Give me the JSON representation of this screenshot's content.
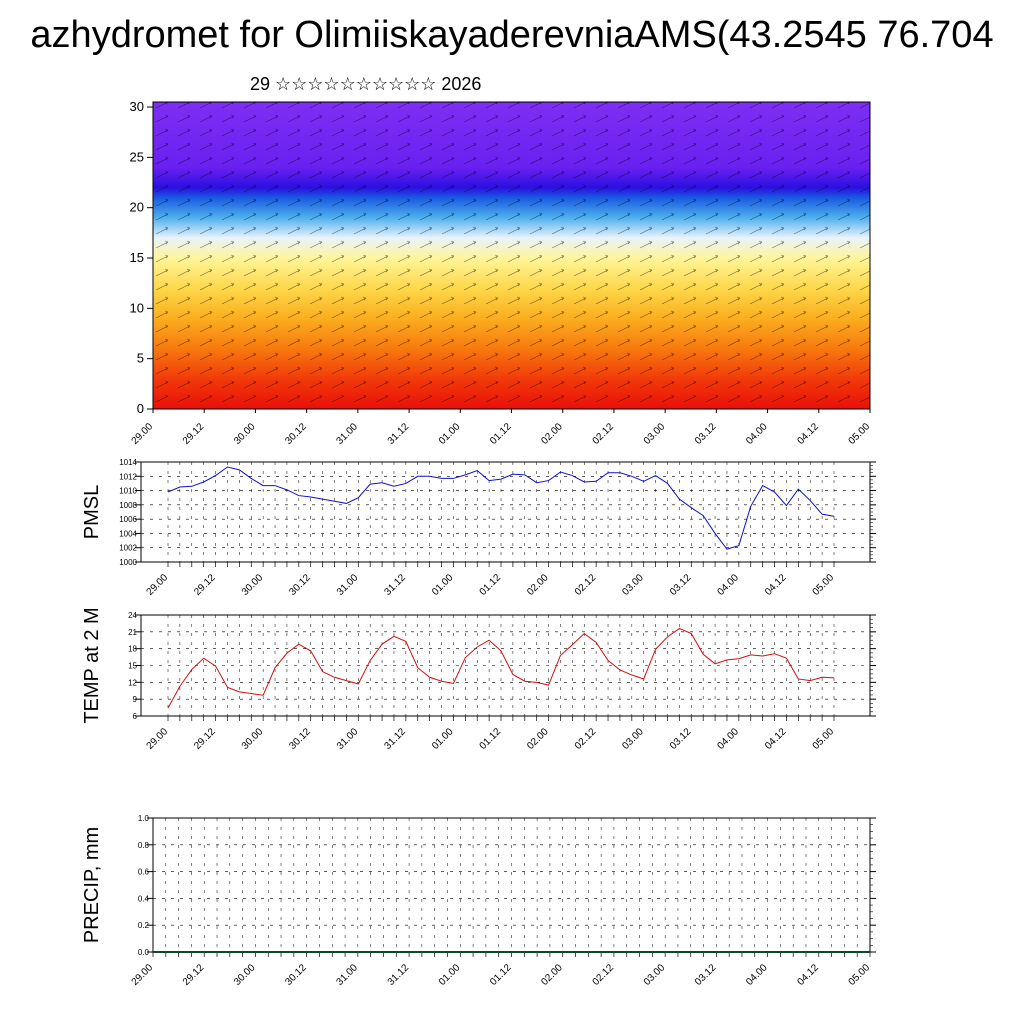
{
  "header": {
    "title": "azhydromet for OlimiiskayaderevniaAMS(43.2545 76.704",
    "subtitle": "29 ☆☆☆☆☆☆☆☆☆☆ 2026"
  },
  "time_labels": [
    "29.00",
    "29.12",
    "30.00",
    "30.12",
    "31.00",
    "31.12",
    "01.00",
    "01.12",
    "02.00",
    "02.12",
    "03.00",
    "03.12",
    "04.00",
    "04.12",
    "05.00"
  ],
  "precip_time_labels": [
    "29.00",
    "29.12",
    "30.00",
    "30.12",
    "31.00",
    "31.12",
    "01.00",
    "01.12",
    "02.00",
    "02.12",
    "03.00",
    "03.12",
    "04.00",
    "04.12",
    "05.00"
  ],
  "chart_data": [
    {
      "type": "heatmap",
      "name_hint": "wind-profile",
      "y_ticks": [
        0,
        5,
        10,
        15,
        20,
        25,
        30
      ],
      "ylim": [
        0,
        30.5
      ],
      "bands": [
        {
          "level": 0,
          "color": "#e8100a"
        },
        {
          "level": 3,
          "color": "#f23a0a"
        },
        {
          "level": 6,
          "color": "#f77a0e"
        },
        {
          "level": 9,
          "color": "#fbae1f"
        },
        {
          "level": 12,
          "color": "#fdd84a"
        },
        {
          "level": 15,
          "color": "#fff59a"
        },
        {
          "level": 17,
          "color": "#e9f3fb"
        },
        {
          "level": 19,
          "color": "#4fb0ec"
        },
        {
          "level": 21,
          "color": "#1858e0"
        },
        {
          "level": 22,
          "color": "#2a10e0"
        },
        {
          "level": 24,
          "color": "#6a20f0"
        },
        {
          "level": 30.5,
          "color": "#7d2ff2"
        }
      ]
    },
    {
      "type": "line",
      "ylabel": "PMSL",
      "ylim": [
        1000,
        1014
      ],
      "y_ticks": [
        1000,
        1002,
        1004,
        1006,
        1008,
        1010,
        1012,
        1014
      ],
      "color": "#1010d0",
      "x": [
        0,
        1,
        2,
        3,
        4,
        5,
        6,
        7,
        8,
        9,
        10,
        11,
        12,
        13,
        14,
        15,
        16,
        17,
        18,
        19,
        20,
        21,
        22,
        23,
        24,
        25,
        26,
        27,
        28,
        29,
        30,
        31,
        32,
        33,
        34,
        35,
        36,
        37,
        38,
        39,
        40,
        41,
        42,
        43,
        44,
        45,
        46,
        47,
        48,
        49,
        50,
        51,
        52,
        53,
        54,
        55,
        56
      ],
      "values": [
        1009.8,
        1010.5,
        1010.6,
        1011.2,
        1012.1,
        1013.3,
        1012.9,
        1011.7,
        1010.7,
        1010.7,
        1010.1,
        1009.3,
        1009.1,
        1008.8,
        1008.5,
        1008.2,
        1009.0,
        1010.9,
        1011.1,
        1010.6,
        1011.0,
        1012.0,
        1012.0,
        1011.7,
        1011.7,
        1012.2,
        1012.8,
        1011.4,
        1011.6,
        1012.3,
        1012.2,
        1011.1,
        1011.4,
        1012.6,
        1012.1,
        1011.2,
        1011.3,
        1012.5,
        1012.5,
        1012.0,
        1011.3,
        1012.1,
        1011.0,
        1008.8,
        1007.6,
        1006.5,
        1004.0,
        1001.8,
        1002.3,
        1007.8,
        1010.7,
        1009.8,
        1007.9,
        1010.2,
        1008.6,
        1006.7,
        1006.4
      ]
    },
    {
      "type": "line",
      "ylabel": "TEMP at 2 M",
      "ylim": [
        6,
        24
      ],
      "y_ticks": [
        6,
        9,
        12,
        15,
        18,
        21,
        24
      ],
      "color": "#d01010",
      "x": [
        0,
        1,
        2,
        3,
        4,
        5,
        6,
        7,
        8,
        9,
        10,
        11,
        12,
        13,
        14,
        15,
        16,
        17,
        18,
        19,
        20,
        21,
        22,
        23,
        24,
        25,
        26,
        27,
        28,
        29,
        30,
        31,
        32,
        33,
        34,
        35,
        36,
        37,
        38,
        39,
        40,
        41,
        42,
        43,
        44,
        45,
        46,
        47,
        48,
        49,
        50,
        51,
        52,
        53,
        54,
        55,
        56
      ],
      "values": [
        7.4,
        11.3,
        14.3,
        16.3,
        14.9,
        11.1,
        10.3,
        10.0,
        9.7,
        14.6,
        17.2,
        18.8,
        17.6,
        13.9,
        12.9,
        12.3,
        11.7,
        15.9,
        18.8,
        20.2,
        19.3,
        14.6,
        12.9,
        12.2,
        11.8,
        16.4,
        18.3,
        19.5,
        17.6,
        13.4,
        12.2,
        12.0,
        11.5,
        16.8,
        18.7,
        20.7,
        19.1,
        15.9,
        14.2,
        13.3,
        12.6,
        17.9,
        20.1,
        21.6,
        20.7,
        17.0,
        15.3,
        16.0,
        16.2,
        16.9,
        16.7,
        17.1,
        16.3,
        12.6,
        12.3,
        12.9,
        12.8
      ]
    },
    {
      "type": "bar",
      "ylabel": "PRECIP, mm",
      "ylim": [
        0,
        1
      ],
      "y_ticks": [
        "0.0",
        "0.2",
        "0.4",
        "0.6",
        "0.8",
        "1.0"
      ],
      "values": []
    }
  ]
}
